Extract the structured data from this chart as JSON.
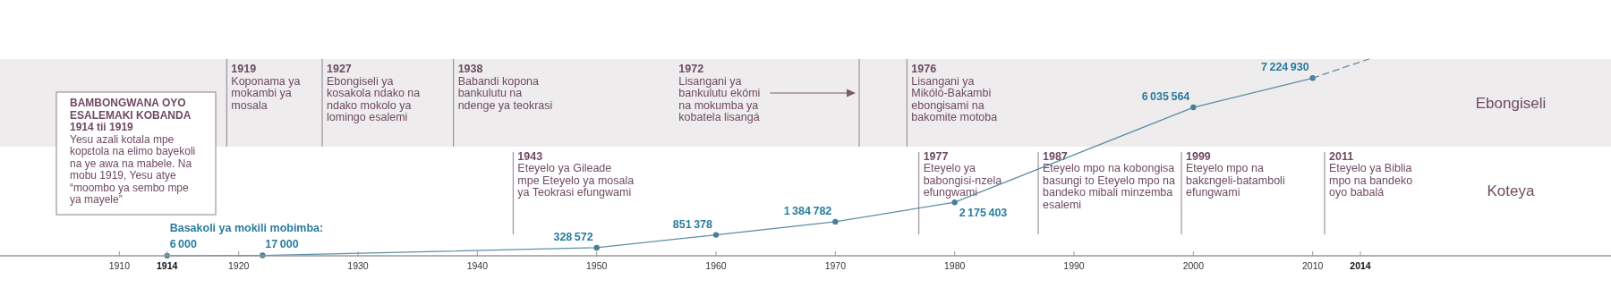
{
  "chart_data": {
    "type": "line",
    "xlim": [
      1900,
      2035
    ],
    "tick_labels": "x",
    "xticks": [
      1910,
      1914,
      1920,
      1930,
      1940,
      1950,
      1960,
      1970,
      1980,
      1990,
      2000,
      2010,
      2014
    ],
    "series": [
      {
        "name": "Basakoli ya mokili mobimba:",
        "color": "#5e8ea6",
        "marker": "circle",
        "x": [
          1914,
          1922,
          1950,
          1960,
          1970,
          1980,
          2000,
          2010
        ],
        "values": [
          6000,
          17000,
          328572,
          851378,
          1384782,
          2175403,
          6035564,
          7224930
        ],
        "value_labels": [
          "6 000",
          "17 000",
          "328 572",
          "851 378",
          "1 384 782",
          "2 175 403",
          "6 035 564",
          "7 224 930"
        ]
      },
      {
        "color": "#5e8ea6",
        "marker": "none",
        "line_style": "dashed",
        "x": [
          2010,
          2014.7
        ],
        "values": [
          7224930,
          8000000
        ]
      }
    ],
    "bands": [
      {
        "axis": "y",
        "from": 4440000,
        "to": 8000000,
        "label": "Ebongiseli",
        "color": "#eeeced"
      }
    ],
    "ref_lines": [
      {
        "axis": "x",
        "value": 1919
      },
      {
        "axis": "x",
        "value": 1927
      },
      {
        "axis": "x",
        "value": 1938
      },
      {
        "axis": "x",
        "value": 1972
      },
      {
        "axis": "x",
        "value": 1976
      },
      {
        "axis": "x",
        "value": 1943
      },
      {
        "axis": "x",
        "value": 1977
      },
      {
        "axis": "x",
        "value": 1987
      },
      {
        "axis": "x",
        "value": 1999
      },
      {
        "axis": "x",
        "value": 2011
      }
    ],
    "annotations": [
      "BAMBONGWANA OYO\nESALEMAKI KOBANDA\n1914 tii 1919",
      "Yesu azali kotala mpe\nkopɛtola na elimo bayekoli\nna ye awa na mabele. Na\nmobu 1919, Yesu atye\n“moombo ya sembo mpe\nya mayele”",
      {
        "text": "1919\nKoponama ya\nmokambi ya\nmosala",
        "x": 1919,
        "y": 8000000
      },
      {
        "text": "1927\nEbongiseli ya\nkosakola ndako na\nndako mokolo ya\nlomingo esalemi",
        "x": 1927,
        "y": 8000000
      },
      {
        "text": "1938\nBabandi kopona\nbankulutu na\nndenge ya teokrasi",
        "x": 1938,
        "y": 8000000
      },
      {
        "text": "1972\nLisangani ya\nbankulutu ekómi\nna mokumba ya\nkobatela lisangá",
        "x": 1956.5,
        "y": 8000000
      },
      {
        "text": "1976\nLisangani ya\nMikóló-Bakambi\nebongisami na\nbakomite motoba",
        "x": 1976,
        "y": 8000000
      },
      {
        "text": "1943\nEteyelo ya Gileade\nmpe Eteyelo ya mosala\nya Teokrasi efungwami",
        "x": 1943,
        "y": 4440000
      },
      {
        "text": "1977\nEteyelo ya\nbabongisi-nzela\nefungwami",
        "x": 1977,
        "y": 4440000
      },
      {
        "text": "1987\nEteyelo mpo na kobongisa\nbasungi to Eteyelo mpo na\nbandeko mibali minzemba\nesalemi",
        "x": 1987,
        "y": 4440000
      },
      {
        "text": "1999\nEteyelo mpo na\nbakɛngeli-batamboli\nefungwami",
        "x": 1999,
        "y": 4440000
      },
      {
        "text": "2011\nEteyelo ya Biblia\nmpo na bandeko\noyo babalá",
        "x": 2011,
        "y": 4440000
      },
      "Koteya"
    ]
  }
}
